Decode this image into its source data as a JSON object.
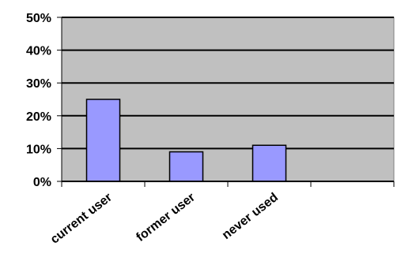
{
  "chart_data": {
    "type": "bar",
    "categories": [
      "current user",
      "former user",
      "never used",
      ""
    ],
    "values": [
      25,
      9,
      11,
      null
    ],
    "ylim": [
      0,
      50
    ],
    "yticks": [
      0,
      10,
      20,
      30,
      40,
      50
    ],
    "ytick_labels": [
      "0%",
      "10%",
      "20%",
      "30%",
      "40%",
      "50%"
    ],
    "grid": true,
    "colors": {
      "plot_background": "#c0c0c0",
      "bar_fill": "#9999ff",
      "bar_stroke": "#000000",
      "gridline": "#000000"
    }
  }
}
